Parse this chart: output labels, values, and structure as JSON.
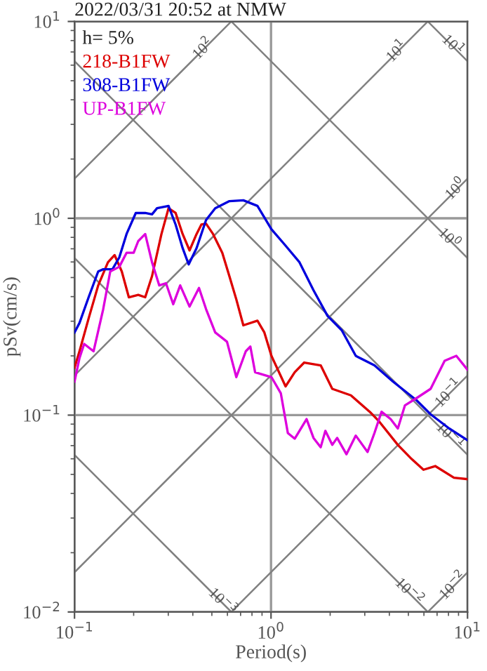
{
  "chart_data": {
    "type": "line",
    "title": "2022/03/31 20:52 at NMW",
    "xlabel": "Period(s)",
    "ylabel": "pSv(cm/s)",
    "log": "xy",
    "grid": true,
    "legend": false,
    "xlim": [
      0.1,
      10
    ],
    "ylim": [
      0.01,
      10
    ],
    "xticks": [
      {
        "value": 0.1,
        "label": "10$^{−1}$"
      },
      {
        "value": 1,
        "label": "10$^{0}$"
      },
      {
        "value": 10,
        "label": "10$^{1}$"
      }
    ],
    "yticks": [
      {
        "value": 0.01,
        "label": "10$^{−2}$"
      },
      {
        "value": 0.1,
        "label": "10$^{−1}$"
      },
      {
        "value": 1,
        "label": "10$^{0}$"
      },
      {
        "value": 10,
        "label": "10$^{1}$"
      }
    ],
    "annotations": [
      "h= 5%",
      {
        "text": "10$^{2}$",
        "x": 0.454,
        "y": 7.22
      },
      {
        "text": "10$^{1}$",
        "x": 4.4,
        "y": 7.0
      },
      {
        "text": "10$^{1}$",
        "x": 8.34,
        "y": 7.53
      },
      {
        "text": "10$^{0}$",
        "x": 8.77,
        "y": 1.4
      },
      {
        "text": "10$^{0}$",
        "x": 8.0,
        "y": 0.785
      },
      {
        "text": "10$^{−1}$",
        "x": 8.07,
        "y": 0.128
      },
      {
        "text": "10$^{−1}$",
        "x": 8.07,
        "y": 0.0778
      },
      {
        "text": "10$^{−3}$",
        "x": 0.562,
        "y": 0.0112
      },
      {
        "text": "10$^{−2}$",
        "x": 5.0,
        "y": 0.0126
      },
      {
        "text": "10$^{−2}$",
        "x": 8.5,
        "y": 0.0135
      }
    ],
    "series": [
      {
        "color": "#808080",
        "x": [
          0.1,
          0.628
        ],
        "values": [
          1.59,
          10
        ]
      },
      {
        "color": "#808080",
        "x": [
          0.1,
          6.28
        ],
        "values": [
          0.159,
          10
        ]
      },
      {
        "color": "#808080",
        "x": [
          0.1,
          10
        ],
        "values": [
          0.0159,
          1.59
        ]
      },
      {
        "color": "#808080",
        "x": [
          0.628,
          10
        ],
        "values": [
          0.01,
          0.159
        ]
      },
      {
        "color": "#808080",
        "x": [
          6.28,
          10
        ],
        "values": [
          0.01,
          0.0159
        ]
      },
      {
        "color": "#808080",
        "x": [
          6.28,
          10
        ],
        "values": [
          10,
          6.28
        ]
      },
      {
        "color": "#808080",
        "x": [
          0.628,
          10
        ],
        "values": [
          10,
          0.628
        ]
      },
      {
        "color": "#808080",
        "x": [
          0.1,
          10
        ],
        "values": [
          6.28,
          0.0628
        ]
      },
      {
        "color": "#808080",
        "x": [
          0.1,
          6.28
        ],
        "values": [
          0.628,
          0.01
        ]
      },
      {
        "color": "#808080",
        "x": [
          0.1,
          0.628
        ],
        "values": [
          0.0628,
          0.01
        ]
      },
      {
        "name": "218-B1FW",
        "color": "#dd0000",
        "x": [
          0.1,
          0.106,
          0.118,
          0.132,
          0.148,
          0.16,
          0.174,
          0.189,
          0.211,
          0.229,
          0.248,
          0.277,
          0.301,
          0.327,
          0.355,
          0.385,
          0.418,
          0.442,
          0.467,
          0.507,
          0.565,
          0.614,
          0.666,
          0.723,
          0.853,
          0.925,
          1.005,
          1.186,
          1.32,
          1.476,
          1.79,
          2.05,
          2.55,
          3.18,
          3.55,
          4.42,
          5.2,
          5.97,
          6.85,
          8.53,
          10
        ],
        "values": [
          0.174,
          0.211,
          0.31,
          0.456,
          0.598,
          0.65,
          0.537,
          0.397,
          0.408,
          0.397,
          0.508,
          0.832,
          1.125,
          1.064,
          0.832,
          0.687,
          0.832,
          0.929,
          0.939,
          0.832,
          0.668,
          0.508,
          0.387,
          0.286,
          0.302,
          0.263,
          0.2,
          0.14,
          0.165,
          0.185,
          0.179,
          0.136,
          0.126,
          0.104,
          0.0929,
          0.0706,
          0.0598,
          0.0528,
          0.0551,
          0.0481,
          0.0473
        ]
      },
      {
        "name": "308-B1FW",
        "color": "#0000dd",
        "x": [
          0.1,
          0.106,
          0.118,
          0.132,
          0.14,
          0.156,
          0.169,
          0.184,
          0.205,
          0.229,
          0.248,
          0.263,
          0.301,
          0.327,
          0.355,
          0.381,
          0.418,
          0.467,
          0.52,
          0.614,
          0.723,
          0.853,
          1.005,
          1.186,
          1.396,
          1.645,
          1.94,
          2.29,
          2.7,
          3.36,
          4.18,
          5.5,
          6.49,
          8.07,
          10
        ],
        "values": [
          0.263,
          0.294,
          0.397,
          0.537,
          0.551,
          0.551,
          0.633,
          0.832,
          1.064,
          1.064,
          1.047,
          1.125,
          1.156,
          0.929,
          0.706,
          0.583,
          0.706,
          0.98,
          1.125,
          1.222,
          1.234,
          1.156,
          0.88,
          0.726,
          0.598,
          0.431,
          0.319,
          0.27,
          0.2,
          0.179,
          0.148,
          0.119,
          0.101,
          0.0855,
          0.0746
        ]
      },
      {
        "name": "UP-B1FW",
        "color": "#dd00dd",
        "x": [
          0.1,
          0.106,
          0.112,
          0.125,
          0.14,
          0.152,
          0.169,
          0.184,
          0.2,
          0.211,
          0.229,
          0.248,
          0.27,
          0.292,
          0.318,
          0.345,
          0.385,
          0.43,
          0.467,
          0.52,
          0.597,
          0.666,
          0.744,
          0.785,
          0.83,
          1.005,
          1.122,
          1.218,
          1.32,
          1.517,
          1.645,
          1.79,
          1.89,
          2.05,
          2.17,
          2.42,
          2.7,
          3.1,
          3.36,
          3.65,
          4.06,
          4.42,
          4.8,
          5.5,
          6.49,
          7.65,
          8.77,
          10
        ],
        "values": [
          0.148,
          0.195,
          0.23,
          0.211,
          0.346,
          0.537,
          0.567,
          0.668,
          0.668,
          0.766,
          0.832,
          0.598,
          0.456,
          0.468,
          0.366,
          0.456,
          0.356,
          0.443,
          0.346,
          0.263,
          0.236,
          0.156,
          0.211,
          0.223,
          0.165,
          0.156,
          0.129,
          0.0811,
          0.0759,
          0.0955,
          0.0766,
          0.0687,
          0.0832,
          0.0706,
          0.0766,
          0.0633,
          0.0787,
          0.065,
          0.0811,
          0.104,
          0.0955,
          0.0855,
          0.112,
          0.122,
          0.136,
          0.189,
          0.2,
          0.17
        ]
      }
    ]
  }
}
